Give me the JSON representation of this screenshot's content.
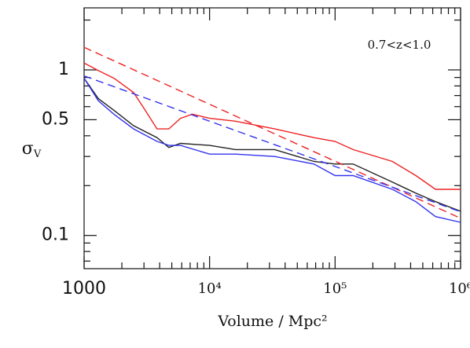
{
  "chart_data": {
    "type": "line",
    "x_label": "Volume / Mpc²",
    "y_label": "σ",
    "y_label_sub": "V",
    "annotation": "0.7<z<1.0",
    "xlog": true,
    "ylog": true,
    "xlim": [
      1000,
      1000000
    ],
    "ylim": [
      0.063,
      2.37
    ],
    "xticks": [
      1000,
      {
        "value": 10000,
        "label": "10⁴"
      },
      {
        "value": 100000,
        "label": "10⁵"
      },
      {
        "value": 1000000,
        "label": "10⁶"
      }
    ],
    "yticks": [
      0.1,
      0.5,
      1
    ],
    "minor_xticks": [
      2000,
      3000,
      4000,
      5000,
      6000,
      7000,
      8000,
      9000,
      20000,
      30000,
      40000,
      50000,
      60000,
      70000,
      80000,
      90000,
      200000,
      300000,
      400000,
      500000,
      600000,
      700000,
      800000,
      900000
    ],
    "minor_yticks": [
      0.07,
      0.08,
      0.09,
      0.2,
      0.3,
      0.4,
      0.6,
      0.7,
      0.8,
      0.9,
      2
    ],
    "series": [
      {
        "name": "red",
        "color": "#ee2222",
        "dashed": false,
        "x": [
          1000,
          1300,
          1730,
          2480,
          3070,
          3810,
          4730,
          5870,
          7290,
          10000,
          16100,
          33000,
          67800,
          100000,
          139000,
          286000,
          440000,
          631000,
          1000000
        ],
        "values": [
          1.1,
          0.99,
          0.89,
          0.73,
          0.57,
          0.44,
          0.44,
          0.51,
          0.54,
          0.51,
          0.49,
          0.44,
          0.39,
          0.37,
          0.33,
          0.28,
          0.23,
          0.19,
          0.19
        ]
      },
      {
        "name": "black",
        "color": "#222222",
        "dashed": false,
        "x": [
          1000,
          1300,
          1730,
          2480,
          3810,
          4730,
          5870,
          10000,
          16100,
          33000,
          67800,
          100000,
          139000,
          286000,
          440000,
          631000,
          1000000
        ],
        "values": [
          0.89,
          0.67,
          0.57,
          0.46,
          0.39,
          0.34,
          0.36,
          0.35,
          0.33,
          0.33,
          0.28,
          0.27,
          0.27,
          0.21,
          0.18,
          0.16,
          0.14
        ]
      },
      {
        "name": "blue",
        "color": "#3333ee",
        "dashed": false,
        "x": [
          1000,
          1300,
          1730,
          2480,
          3810,
          4730,
          5870,
          10000,
          16100,
          33000,
          67800,
          100000,
          139000,
          286000,
          440000,
          631000,
          1000000
        ],
        "values": [
          0.89,
          0.65,
          0.54,
          0.44,
          0.37,
          0.35,
          0.35,
          0.31,
          0.31,
          0.3,
          0.27,
          0.23,
          0.23,
          0.19,
          0.16,
          0.13,
          0.12
        ]
      },
      {
        "name": "red-fit",
        "color": "#ee2222",
        "dashed": true,
        "x": [
          1000,
          1000000
        ],
        "values": [
          1.37,
          0.127
        ]
      },
      {
        "name": "blue-fit",
        "color": "#3333ee",
        "dashed": true,
        "x": [
          1000,
          1000000
        ],
        "values": [
          0.92,
          0.139
        ]
      }
    ]
  }
}
